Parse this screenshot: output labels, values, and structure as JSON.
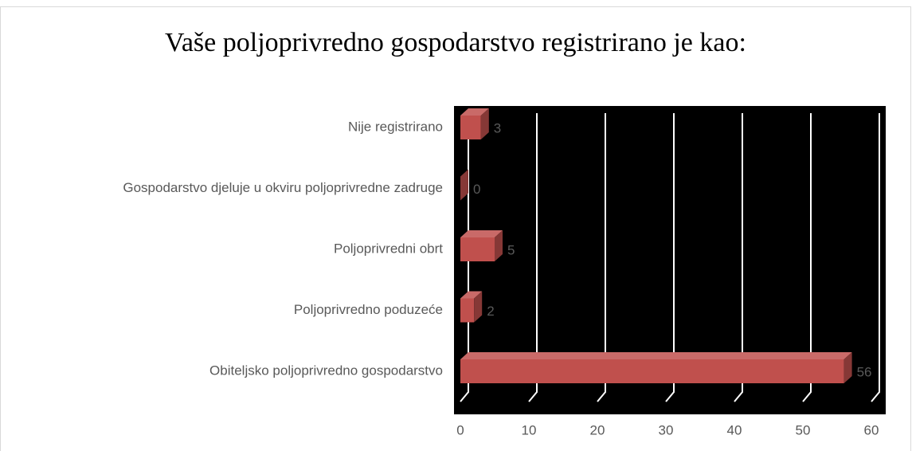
{
  "chart_data": {
    "type": "bar3d_horizontal",
    "title": "Vaše poljoprivredno gospodarstvo registrirano je kao:",
    "categories": [
      "Nije registrirano",
      "Gospodarstvo djeluje u okviru poljoprivredne zadruge",
      "Poljoprivredni obrt",
      "Poljoprivredno poduzeće",
      "Obiteljsko poljoprivredno gospodarstvo"
    ],
    "values": [
      3,
      0,
      5,
      2,
      56
    ],
    "color": "#c0504d",
    "xlim": [
      0,
      60
    ],
    "xticks": [
      0,
      10,
      20,
      30,
      40,
      50,
      60
    ],
    "grid": true,
    "plot_background": "#000000"
  }
}
